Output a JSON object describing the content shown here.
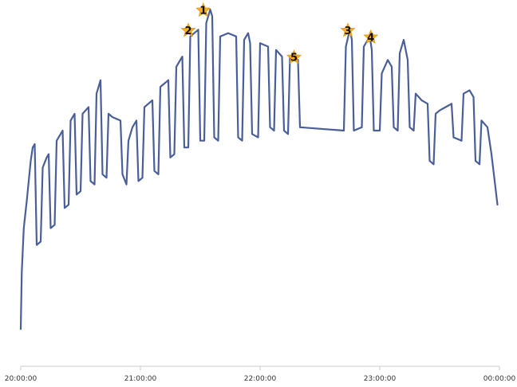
{
  "colors": {
    "line": "#4a5f9a",
    "axis": "#cccccc",
    "marker_fill": "#f2b021",
    "marker_stroke": "#e39b10"
  },
  "chart_data": {
    "type": "line",
    "title": "",
    "xlabel": "",
    "ylabel": "",
    "y_axis_visible": false,
    "grid": false,
    "x_ticks": [
      "20:00:00",
      "21:00:00",
      "22:00:00",
      "23:00:00",
      "00:00:00"
    ],
    "x_unit": "minutes after 20:00:00",
    "xlim": [
      0,
      240
    ],
    "ylim": [
      0,
      100
    ],
    "series": [
      {
        "values": [
          [
            0,
            8
          ],
          [
            0.5,
            25
          ],
          [
            1.5,
            38
          ],
          [
            3,
            46
          ],
          [
            5,
            58
          ],
          [
            6,
            62
          ],
          [
            7,
            63
          ],
          [
            8,
            33
          ],
          [
            10,
            34
          ],
          [
            11,
            56
          ],
          [
            13,
            59
          ],
          [
            14,
            60
          ],
          [
            15,
            38
          ],
          [
            17,
            39
          ],
          [
            18,
            64
          ],
          [
            21,
            67
          ],
          [
            22,
            44
          ],
          [
            24,
            45
          ],
          [
            25,
            70
          ],
          [
            27,
            72
          ],
          [
            28,
            48
          ],
          [
            30,
            49
          ],
          [
            31,
            72
          ],
          [
            34,
            74
          ],
          [
            35,
            52
          ],
          [
            37,
            51
          ],
          [
            38,
            78
          ],
          [
            40,
            82
          ],
          [
            41,
            54
          ],
          [
            43,
            53
          ],
          [
            44,
            72
          ],
          [
            46,
            71
          ],
          [
            50,
            70
          ],
          [
            51,
            54
          ],
          [
            53,
            51
          ],
          [
            54,
            64
          ],
          [
            56,
            68
          ],
          [
            58,
            70
          ],
          [
            59,
            52
          ],
          [
            61,
            53
          ],
          [
            62,
            74
          ],
          [
            66,
            76
          ],
          [
            67,
            55
          ],
          [
            69,
            54
          ],
          [
            70,
            80
          ],
          [
            74,
            82
          ],
          [
            75,
            59
          ],
          [
            77,
            60
          ],
          [
            78,
            86
          ],
          [
            81,
            89
          ],
          [
            82,
            62
          ],
          [
            84,
            62
          ],
          [
            85,
            95
          ],
          [
            89,
            97
          ],
          [
            90,
            64
          ],
          [
            92,
            64
          ],
          [
            93,
            99
          ],
          [
            95,
            103
          ],
          [
            96,
            101
          ],
          [
            97,
            65
          ],
          [
            99,
            64
          ],
          [
            100,
            95
          ],
          [
            104,
            96
          ],
          [
            108,
            95
          ],
          [
            109,
            65
          ],
          [
            111,
            64
          ],
          [
            112,
            94
          ],
          [
            114,
            96
          ],
          [
            115,
            93
          ],
          [
            116,
            66
          ],
          [
            119,
            65
          ],
          [
            120,
            93
          ],
          [
            124,
            92
          ],
          [
            125,
            68
          ],
          [
            127,
            67
          ],
          [
            128,
            91
          ],
          [
            131,
            89
          ],
          [
            132,
            67
          ],
          [
            134,
            66
          ],
          [
            135,
            89
          ],
          [
            139,
            88
          ],
          [
            140,
            68
          ],
          [
            162,
            67
          ],
          [
            163,
            92
          ],
          [
            165,
            97
          ],
          [
            166,
            94
          ],
          [
            167,
            67
          ],
          [
            171,
            68
          ],
          [
            172,
            92
          ],
          [
            175,
            95
          ],
          [
            176,
            91
          ],
          [
            177,
            67
          ],
          [
            180,
            67
          ],
          [
            181,
            84
          ],
          [
            184,
            88
          ],
          [
            186,
            86
          ],
          [
            187,
            68
          ],
          [
            189,
            67
          ],
          [
            190,
            90
          ],
          [
            192,
            94
          ],
          [
            194,
            88
          ],
          [
            195,
            68
          ],
          [
            197,
            67
          ],
          [
            198,
            78
          ],
          [
            201,
            76
          ],
          [
            204,
            75
          ],
          [
            205,
            58
          ],
          [
            207,
            57
          ],
          [
            208,
            72
          ],
          [
            210,
            73
          ],
          [
            213,
            74
          ],
          [
            216,
            75
          ],
          [
            217,
            65
          ],
          [
            221,
            64
          ],
          [
            222,
            78
          ],
          [
            225,
            79
          ],
          [
            227,
            77
          ],
          [
            228,
            58
          ],
          [
            230,
            57
          ],
          [
            231,
            70
          ],
          [
            234,
            68
          ],
          [
            236,
            60
          ],
          [
            238,
            50
          ],
          [
            239,
            45
          ]
        ]
      }
    ],
    "annotations": [
      {
        "label": "1",
        "x": 91.5,
        "y": 103
      },
      {
        "label": "2",
        "x": 84,
        "y": 97
      },
      {
        "label": "3",
        "x": 164,
        "y": 97
      },
      {
        "label": "4",
        "x": 175.5,
        "y": 95
      },
      {
        "label": "5",
        "x": 137,
        "y": 89
      }
    ]
  }
}
